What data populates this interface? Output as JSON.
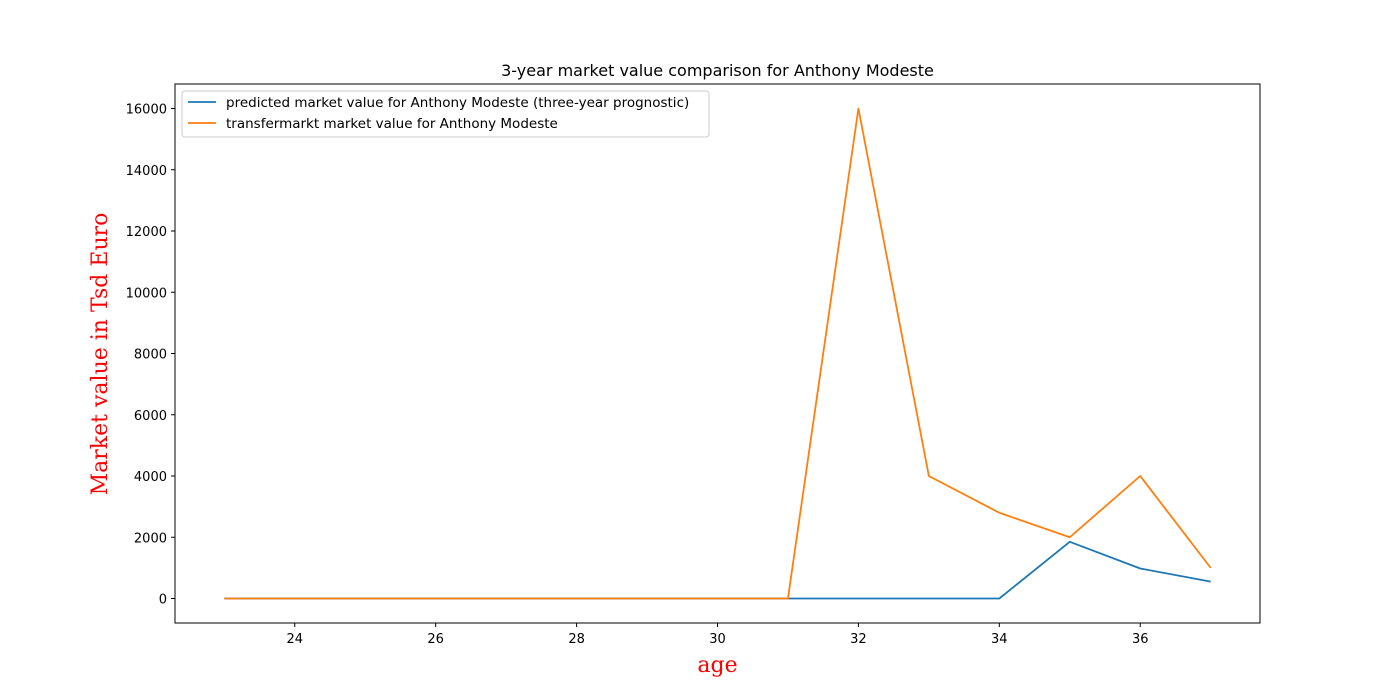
{
  "chart_data": {
    "type": "line",
    "title": "3-year market value comparison for Anthony Modeste",
    "xlabel": "age",
    "ylabel": "Market value in Tsd Euro",
    "label_color": "#ff0000",
    "xlim": [
      22.3,
      37.7
    ],
    "ylim": [
      -800,
      16800
    ],
    "xticks": [
      24,
      26,
      28,
      30,
      32,
      34,
      36
    ],
    "yticks": [
      0,
      2000,
      4000,
      6000,
      8000,
      10000,
      12000,
      14000,
      16000
    ],
    "grid": false,
    "legend_position": "upper-left",
    "x": [
      23,
      24,
      25,
      26,
      27,
      28,
      29,
      30,
      31,
      32,
      33,
      34,
      35,
      36,
      37
    ],
    "series": [
      {
        "name": "predicted market value for Anthony Modeste (three-year prognostic)",
        "color": "#1f77b4",
        "values": [
          0,
          0,
          0,
          0,
          0,
          0,
          0,
          0,
          0,
          0,
          0,
          0,
          1850,
          980,
          550
        ]
      },
      {
        "name": "transfermarkt market value for Anthony Modeste",
        "color": "#ff7f0e",
        "values": [
          0,
          0,
          0,
          0,
          0,
          0,
          0,
          0,
          0,
          16000,
          4000,
          2800,
          2000,
          4000,
          1000
        ]
      }
    ]
  }
}
